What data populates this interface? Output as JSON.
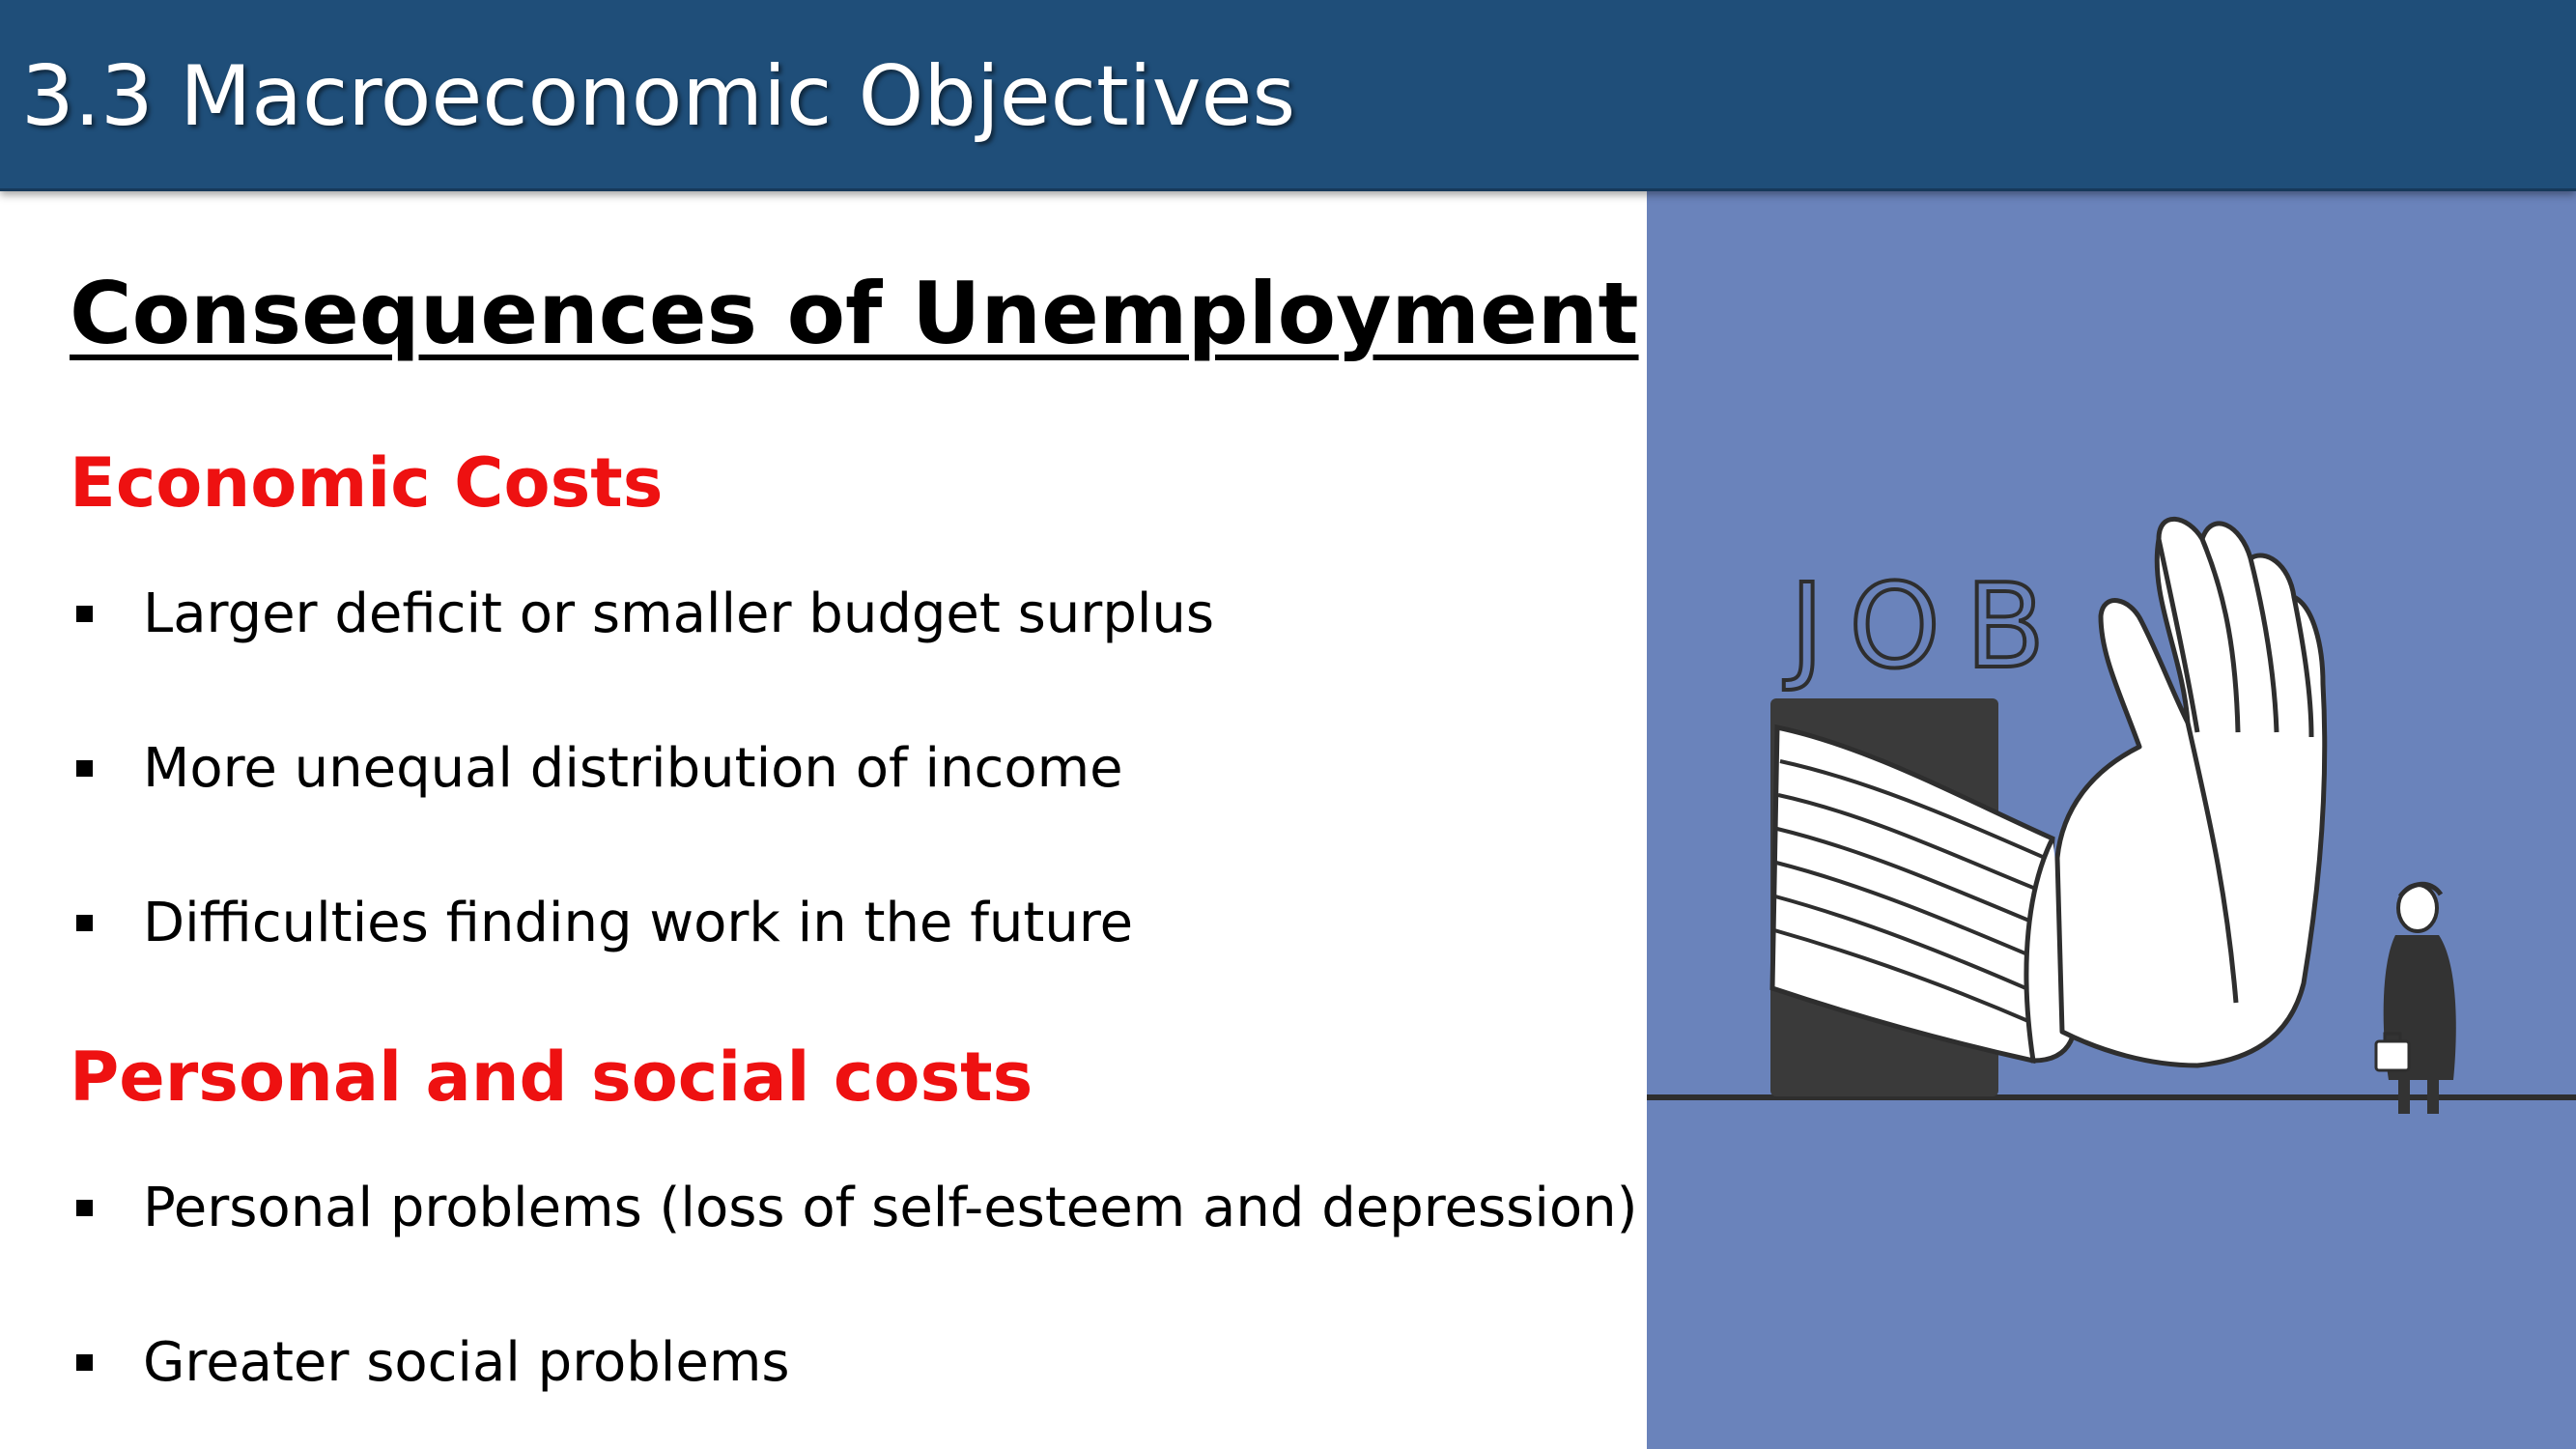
{
  "header": {
    "title": "3.3 Macroeconomic Objectives"
  },
  "slide": {
    "title": "Consequences of Unemployment",
    "sections": [
      {
        "heading": "Economic Costs",
        "bullets": [
          "Larger deficit or smaller budget surplus",
          "More unequal distribution of income",
          "Difficulties finding work in the future"
        ]
      },
      {
        "heading": "Personal and social costs",
        "bullets": [
          "Personal problems (loss of self-esteem and depression)",
          "Greater social problems"
        ]
      }
    ]
  },
  "illustration": {
    "sign_text": "JOB",
    "background_color": "#6a83bb",
    "description_icon": "rejecting-hand-illustration"
  },
  "colors": {
    "header_bg": "#1f4e79",
    "heading_red": "#ee1111"
  }
}
